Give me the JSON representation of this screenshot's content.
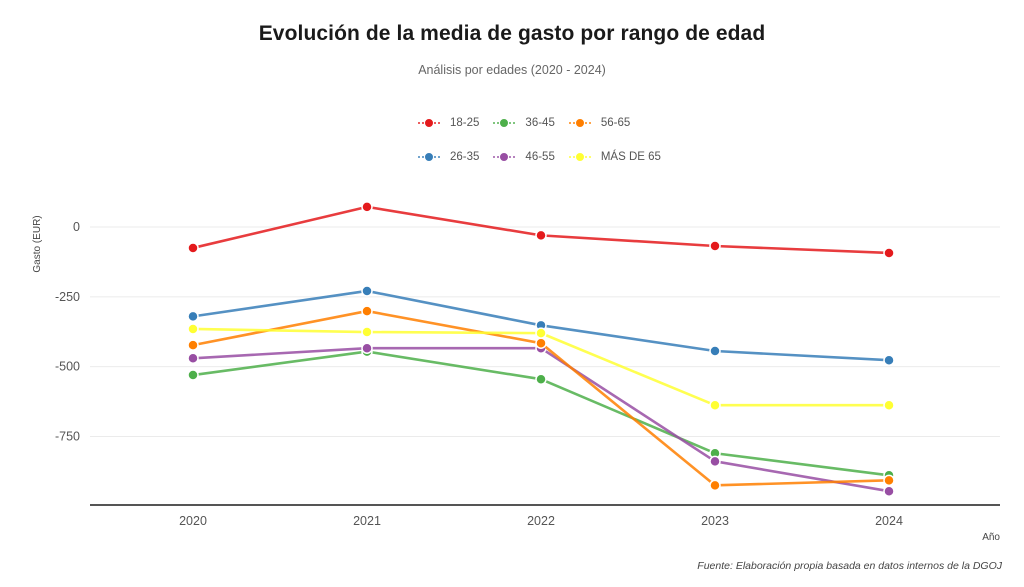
{
  "chart_data": {
    "type": "line",
    "title": "Evolución de la media de gasto por rango de edad",
    "subtitle": "Análisis por edades (2020 - 2024)",
    "xlabel": "Año",
    "ylabel": "Gasto (EUR)",
    "caption": "Fuente: Elaboración propia basada en datos internos de la DGOJ",
    "x": [
      "2020",
      "2021",
      "2022",
      "2023",
      "2024"
    ],
    "yticks": [
      0,
      -250,
      -500,
      -750
    ],
    "ytick_labels": [
      "0",
      "-250",
      "-500",
      "-750"
    ],
    "ylim": [
      -985,
      125
    ],
    "grid": true,
    "legend_position": "top",
    "series": [
      {
        "name": "18-25",
        "color": "#e41a1c",
        "values": [
          -75,
          72,
          -30,
          -68,
          -93
        ]
      },
      {
        "name": "26-35",
        "color": "#377eb8",
        "values": [
          -320,
          -229,
          -352,
          -444,
          -477
        ]
      },
      {
        "name": "36-45",
        "color": "#4daf4a",
        "values": [
          -530,
          -446,
          -545,
          -810,
          -889
        ]
      },
      {
        "name": "46-55",
        "color": "#984ea3",
        "values": [
          -470,
          -434,
          -434,
          -839,
          -946
        ]
      },
      {
        "name": "56-65",
        "color": "#ff7f00",
        "values": [
          -423,
          -301,
          -416,
          -925,
          -907
        ]
      },
      {
        "name": "MÁS DE 65",
        "color": "#ffff33",
        "values": [
          -365,
          -376,
          -380,
          -638,
          -638
        ]
      }
    ],
    "legend_order": [
      [
        "18-25",
        "36-45",
        "56-65"
      ],
      [
        "26-35",
        "46-55",
        "MÁS DE 65"
      ]
    ]
  }
}
